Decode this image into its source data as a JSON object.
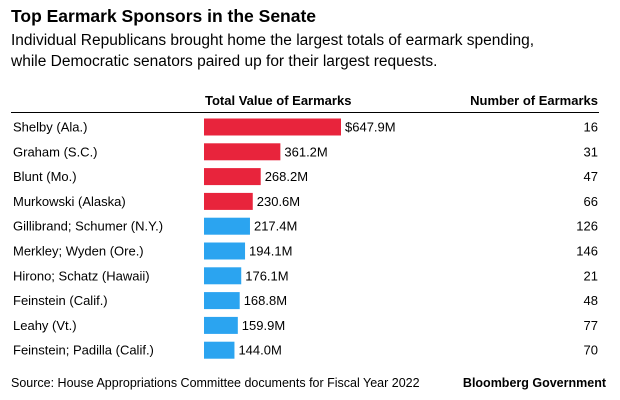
{
  "title": "Top Earmark Sponsors in the Senate",
  "subtitle_lines": [
    "Individual Republicans brought home the largest totals of earmark spending,",
    "while Democratic senators paired up for their largest requests."
  ],
  "columns": {
    "value_header": "Total Value of Earmarks",
    "count_header": "Number of Earmarks"
  },
  "source": "Source: House Appropriations Committee documents for Fiscal Year 2022",
  "credit": "Bloomberg Government",
  "colors": {
    "republican": "#E8243C",
    "democrat": "#2BA4F0"
  },
  "chart_data": {
    "type": "bar",
    "orientation": "horizontal",
    "unit": "millions of dollars",
    "categories": [
      "Shelby (Ala.)",
      "Graham (S.C.)",
      "Blunt (Mo.)",
      "Murkowski (Alaska)",
      "Gillibrand; Schumer (N.Y.)",
      "Merkley; Wyden (Ore.)",
      "Hirono; Schatz (Hawaii)",
      "Feinstein (Calif.)",
      "Leahy (Vt.)",
      "Feinstein; Padilla (Calif.)"
    ],
    "values": [
      647.9,
      361.2,
      268.2,
      230.6,
      217.4,
      194.1,
      176.1,
      168.8,
      159.9,
      144.0
    ],
    "value_labels": [
      "$647.9M",
      "361.2M",
      "268.2M",
      "230.6M",
      "217.4M",
      "194.1M",
      "176.1M",
      "168.8M",
      "159.9M",
      "144.0M"
    ],
    "party_color": [
      "republican",
      "republican",
      "republican",
      "republican",
      "democrat",
      "democrat",
      "democrat",
      "democrat",
      "democrat",
      "democrat"
    ],
    "earmark_counts": [
      "16",
      "31",
      "47",
      "66",
      "126",
      "146",
      "21",
      "48",
      "77",
      "70"
    ],
    "grid": false,
    "legend": "none"
  }
}
